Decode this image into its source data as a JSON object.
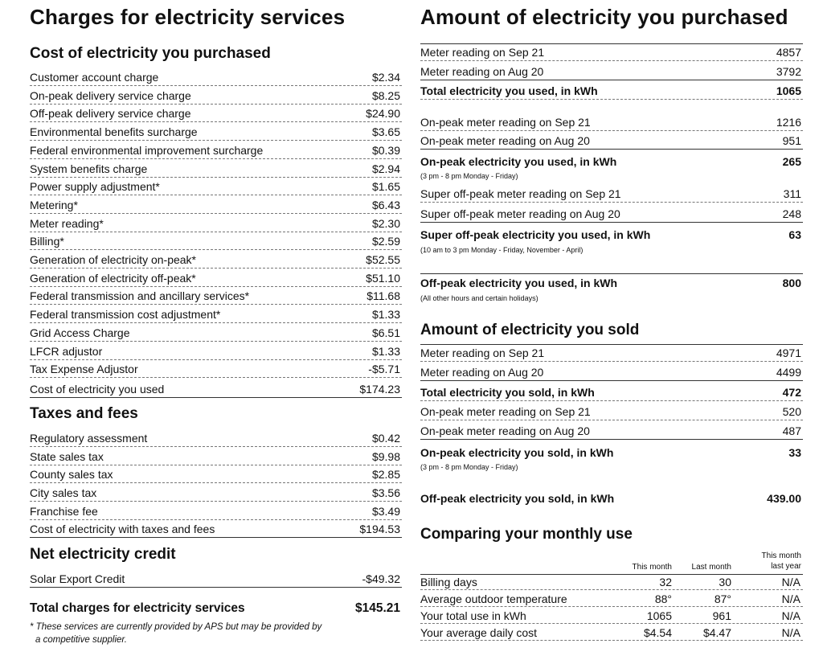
{
  "left": {
    "title": "Charges for electricity services",
    "cost_heading": "Cost of electricity you purchased",
    "cost_items": [
      {
        "label": "Customer account charge",
        "value": "$2.34"
      },
      {
        "label": "On-peak delivery service charge",
        "value": "$8.25"
      },
      {
        "label": "Off-peak delivery service charge",
        "value": "$24.90"
      },
      {
        "label": "Environmental benefits surcharge",
        "value": "$3.65"
      },
      {
        "label": "Federal environmental improvement surcharge",
        "value": "$0.39"
      },
      {
        "label": "System benefits charge",
        "value": "$2.94"
      },
      {
        "label": "Power supply adjustment*",
        "value": "$1.65"
      },
      {
        "label": "Metering*",
        "value": "$6.43"
      },
      {
        "label": "Meter reading*",
        "value": "$2.30"
      },
      {
        "label": "Billing*",
        "value": "$2.59"
      },
      {
        "label": "Generation of electricity on-peak*",
        "value": "$52.55"
      },
      {
        "label": "Generation of electricity off-peak*",
        "value": "$51.10"
      },
      {
        "label": "Federal transmission and ancillary services*",
        "value": "$11.68"
      },
      {
        "label": "Federal transmission cost adjustment*",
        "value": "$1.33"
      },
      {
        "label": "Grid Access Charge",
        "value": "$6.51"
      },
      {
        "label": "LFCR adjustor",
        "value": "$1.33"
      },
      {
        "label": "Tax Expense Adjustor",
        "value": "-$5.71"
      }
    ],
    "cost_total": {
      "label": "Cost of electricity you used",
      "value": "$174.23"
    },
    "tax_heading": "Taxes and fees",
    "tax_items": [
      {
        "label": "Regulatory assessment",
        "value": "$0.42"
      },
      {
        "label": "State sales tax",
        "value": "$9.98"
      },
      {
        "label": "County sales tax",
        "value": "$2.85"
      },
      {
        "label": "City sales tax",
        "value": "$3.56"
      },
      {
        "label": "Franchise fee",
        "value": "$3.49"
      }
    ],
    "tax_total": {
      "label": "Cost of electricity with taxes and fees",
      "value": "$194.53"
    },
    "credit_heading": "Net electricity credit",
    "credit_item": {
      "label": "Solar Export Credit",
      "value": "-$49.32"
    },
    "grand_total": {
      "label": "Total charges for electricity services",
      "value": "$145.21"
    },
    "footnote_line1": "* These services are currently provided by APS but may be provided by",
    "footnote_line2": "a competitive supplier."
  },
  "right": {
    "title": "Amount of electricity you purchased",
    "purchased": [
      {
        "label": "Meter reading on Sep 21",
        "value": "4857"
      },
      {
        "label": "Meter reading on Aug 20",
        "value": "3792"
      },
      {
        "label": "Total electricity you used, in kWh",
        "value": "1065"
      },
      {
        "label": "On-peak meter reading on Sep 21",
        "value": "1216"
      },
      {
        "label": "On-peak meter reading on Aug 20",
        "value": "951"
      },
      {
        "label": "On-peak electricity you used, in kWh",
        "value": "265"
      },
      {
        "label": "Super off-peak meter reading on Sep 21",
        "value": "311"
      },
      {
        "label": "Super off-peak meter reading on Aug 20",
        "value": "248"
      },
      {
        "label": "Super off-peak electricity you used, in kWh",
        "value": "63"
      },
      {
        "label": "Off-peak electricity you used, in kWh",
        "value": "800"
      }
    ],
    "notes": {
      "onpeak": "(3 pm - 8 pm Monday - Friday)",
      "superoff": "(10 am to 3 pm Monday - Friday, November - April)",
      "offpeak": "(All other hours and certain holidays)",
      "sold_onpeak": "(3 pm - 8 pm Monday - Friday)"
    },
    "sold_heading": "Amount of electricity you sold",
    "sold": [
      {
        "label": "Meter reading on Sep 21",
        "value": "4971"
      },
      {
        "label": "Meter reading on Aug 20",
        "value": "4499"
      },
      {
        "label": "Total electricity you sold, in kWh",
        "value": "472"
      },
      {
        "label": "On-peak meter reading on Sep 21",
        "value": "520"
      },
      {
        "label": "On-peak meter reading on Aug 20",
        "value": "487"
      },
      {
        "label": "On-peak electricity you sold, in kWh",
        "value": "33"
      },
      {
        "label": "Off-peak electricity you sold, in kWh",
        "value": "439.00"
      }
    ],
    "compare_heading": "Comparing your monthly use",
    "compare_headers": [
      "This month",
      "Last month",
      "This month",
      "last year"
    ],
    "compare_rows": [
      {
        "label": "Billing days",
        "a": "32",
        "b": "30",
        "c": "N/A"
      },
      {
        "label": "Average outdoor temperature",
        "a": "88°",
        "b": "87°",
        "c": "N/A"
      },
      {
        "label": "Your total use in kWh",
        "a": "1065",
        "b": "961",
        "c": "N/A"
      },
      {
        "label": "Your average daily cost",
        "a": "$4.54",
        "b": "$4.47",
        "c": "N/A"
      }
    ]
  }
}
